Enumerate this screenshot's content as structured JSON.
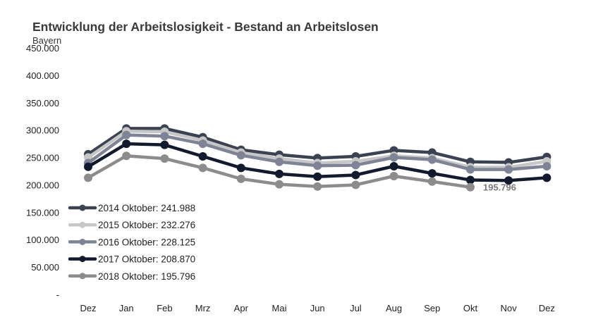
{
  "chart_data": {
    "type": "line",
    "title": "Entwicklung der Arbeitslosigkeit - Bestand an Arbeitslosen",
    "subtitle": "Bayern",
    "categories": [
      "Dez",
      "Jan",
      "Feb",
      "Mrz",
      "Apr",
      "Mai",
      "Jun",
      "Jul",
      "Aug",
      "Sep",
      "Okt",
      "Nov",
      "Dez"
    ],
    "y_ticks": [
      "-",
      "50.000",
      "100.000",
      "150.000",
      "200.000",
      "250.000",
      "300.000",
      "350.000",
      "400.000",
      "450.000"
    ],
    "ylim": [
      0,
      450000
    ],
    "legend_position": "left",
    "series": [
      {
        "name": "2014",
        "legend": "2014 Oktober: 241.988",
        "color": "#3b4252",
        "values": [
          256000,
          303000,
          303000,
          287000,
          264000,
          255000,
          249000,
          252000,
          263000,
          259000,
          241988,
          241000,
          251000
        ]
      },
      {
        "name": "2015",
        "legend": "2015 Oktober: 232.276",
        "color": "#c7c7c7",
        "values": [
          250000,
          298000,
          297000,
          281000,
          259000,
          248000,
          240000,
          243000,
          253000,
          249000,
          232276,
          232000,
          243000
        ]
      },
      {
        "name": "2016",
        "legend": "2016 Oktober: 228.125",
        "color": "#7e8496",
        "values": [
          240000,
          291000,
          289000,
          275000,
          254000,
          242000,
          235000,
          236000,
          250000,
          246000,
          228125,
          228000,
          234000
        ]
      },
      {
        "name": "2017",
        "legend": "2017 Oktober: 208.870",
        "color": "#121a2e",
        "values": [
          233000,
          275000,
          273000,
          252000,
          231000,
          220000,
          215000,
          218000,
          234000,
          221000,
          208870,
          208000,
          213000
        ]
      },
      {
        "name": "2018",
        "legend": "2018 Oktober: 195.796",
        "color": "#8c8c8c",
        "values": [
          213000,
          253000,
          248000,
          231000,
          211000,
          201000,
          197000,
          200000,
          216000,
          206000,
          195796,
          null,
          null
        ]
      }
    ],
    "annotation": {
      "text": "195.796",
      "series": "2018",
      "index": 10
    }
  }
}
